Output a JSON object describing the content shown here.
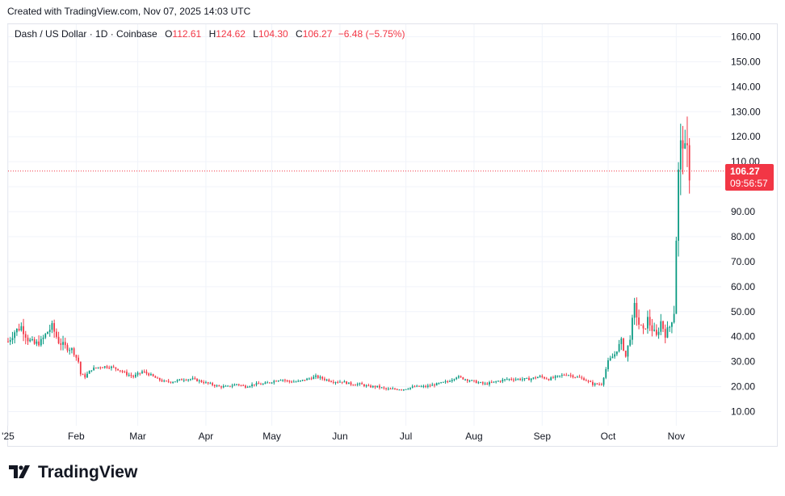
{
  "header": {
    "created_text": "Created with TradingView.com, Nov 07, 2025 14:03 UTC"
  },
  "legend": {
    "symbol": "Dash / US Dollar · 1D · Coinbase",
    "o_label": "O",
    "o_value": "112.61",
    "h_label": "H",
    "h_value": "124.62",
    "l_label": "L",
    "l_value": "104.30",
    "c_label": "C",
    "c_value": "106.27",
    "change": "−6.48 (−5.75%)"
  },
  "price_badge": {
    "price": "106.27",
    "countdown": "09:56:57"
  },
  "brand": {
    "name": "TradingView"
  },
  "colors": {
    "up": "#089981",
    "down": "#f23645",
    "grid": "#f0f3fa",
    "axis_text": "#131722"
  },
  "chart_data": {
    "type": "candlestick",
    "title": "Dash / US Dollar · 1D · Coinbase",
    "y_ticks": [
      "10.00",
      "20.00",
      "30.00",
      "40.00",
      "50.00",
      "60.00",
      "70.00",
      "80.00",
      "90.00",
      "100.00",
      "110.00",
      "120.00",
      "130.00",
      "140.00",
      "150.00",
      "160.00"
    ],
    "y_tick_values": [
      10,
      20,
      30,
      40,
      50,
      60,
      70,
      80,
      90,
      100,
      110,
      120,
      130,
      140,
      150,
      160
    ],
    "x_ticks": [
      "2025",
      "Feb",
      "Mar",
      "Apr",
      "May",
      "Jun",
      "Jul",
      "Aug",
      "Sep",
      "Oct",
      "Nov"
    ],
    "x_tick_dates": [
      "2025-01-01",
      "2025-02-01",
      "2025-03-01",
      "2025-04-01",
      "2025-05-01",
      "2025-06-01",
      "2025-07-01",
      "2025-08-01",
      "2025-09-01",
      "2025-10-01",
      "2025-11-01"
    ],
    "x_tick_display": [
      "'25",
      "Feb",
      "Mar",
      "Apr",
      "May",
      "Jun",
      "Jul",
      "Aug",
      "Sep",
      "Oct",
      "Nov"
    ],
    "ylim": [
      5,
      165
    ],
    "xlim": [
      "2025-01-01",
      "2025-11-13"
    ],
    "last_price": 106.27,
    "grid": true,
    "close_series": [
      [
        "2025-01-01",
        38
      ],
      [
        "2025-01-04",
        42
      ],
      [
        "2025-01-07",
        44
      ],
      [
        "2025-01-10",
        39
      ],
      [
        "2025-01-13",
        37
      ],
      [
        "2025-01-16",
        38
      ],
      [
        "2025-01-19",
        42
      ],
      [
        "2025-01-21",
        44
      ],
      [
        "2025-01-24",
        38
      ],
      [
        "2025-01-27",
        36
      ],
      [
        "2025-01-30",
        35
      ],
      [
        "2025-02-02",
        30
      ],
      [
        "2025-02-03",
        25
      ],
      [
        "2025-02-05",
        24
      ],
      [
        "2025-02-08",
        27
      ],
      [
        "2025-02-12",
        28
      ],
      [
        "2025-02-16",
        28
      ],
      [
        "2025-02-20",
        27
      ],
      [
        "2025-02-24",
        25
      ],
      [
        "2025-02-27",
        24
      ],
      [
        "2025-03-03",
        26
      ],
      [
        "2025-03-06",
        25
      ],
      [
        "2025-03-10",
        23
      ],
      [
        "2025-03-13",
        22
      ],
      [
        "2025-03-17",
        22
      ],
      [
        "2025-03-22",
        23
      ],
      [
        "2025-03-26",
        23
      ],
      [
        "2025-03-30",
        22
      ],
      [
        "2025-04-03",
        21
      ],
      [
        "2025-04-07",
        20
      ],
      [
        "2025-04-11",
        20
      ],
      [
        "2025-04-15",
        21
      ],
      [
        "2025-04-19",
        20
      ],
      [
        "2025-04-23",
        21
      ],
      [
        "2025-04-27",
        21
      ],
      [
        "2025-05-01",
        22
      ],
      [
        "2025-05-05",
        23
      ],
      [
        "2025-05-09",
        22
      ],
      [
        "2025-05-13",
        22
      ],
      [
        "2025-05-17",
        23
      ],
      [
        "2025-05-21",
        24
      ],
      [
        "2025-05-25",
        23
      ],
      [
        "2025-05-29",
        22
      ],
      [
        "2025-06-02",
        22
      ],
      [
        "2025-06-06",
        21
      ],
      [
        "2025-06-10",
        21
      ],
      [
        "2025-06-14",
        20
      ],
      [
        "2025-06-18",
        20
      ],
      [
        "2025-06-22",
        19
      ],
      [
        "2025-06-26",
        19
      ],
      [
        "2025-06-30",
        19
      ],
      [
        "2025-07-05",
        20
      ],
      [
        "2025-07-10",
        20
      ],
      [
        "2025-07-15",
        21
      ],
      [
        "2025-07-20",
        22
      ],
      [
        "2025-07-24",
        24
      ],
      [
        "2025-07-28",
        23
      ],
      [
        "2025-08-01",
        22
      ],
      [
        "2025-08-06",
        21
      ],
      [
        "2025-08-11",
        22
      ],
      [
        "2025-08-16",
        23
      ],
      [
        "2025-08-21",
        23
      ],
      [
        "2025-08-26",
        23
      ],
      [
        "2025-08-31",
        24
      ],
      [
        "2025-09-04",
        23
      ],
      [
        "2025-09-08",
        24
      ],
      [
        "2025-09-12",
        25
      ],
      [
        "2025-09-16",
        24
      ],
      [
        "2025-09-20",
        23
      ],
      [
        "2025-09-24",
        21
      ],
      [
        "2025-09-28",
        21
      ],
      [
        "2025-10-01",
        30
      ],
      [
        "2025-10-04",
        33
      ],
      [
        "2025-10-07",
        38
      ],
      [
        "2025-10-09",
        32
      ],
      [
        "2025-10-11",
        40
      ],
      [
        "2025-10-13",
        52
      ],
      [
        "2025-10-15",
        45
      ],
      [
        "2025-10-17",
        42
      ],
      [
        "2025-10-19",
        47
      ],
      [
        "2025-10-21",
        43
      ],
      [
        "2025-10-23",
        40
      ],
      [
        "2025-10-25",
        46
      ],
      [
        "2025-10-27",
        41
      ],
      [
        "2025-10-29",
        44
      ],
      [
        "2025-10-31",
        50
      ],
      [
        "2025-11-01",
        80
      ],
      [
        "2025-11-02",
        105
      ],
      [
        "2025-11-03",
        115
      ],
      [
        "2025-11-04",
        120
      ],
      [
        "2025-11-05",
        112
      ],
      [
        "2025-11-06",
        112.61
      ],
      [
        "2025-11-07",
        106.27
      ]
    ]
  }
}
